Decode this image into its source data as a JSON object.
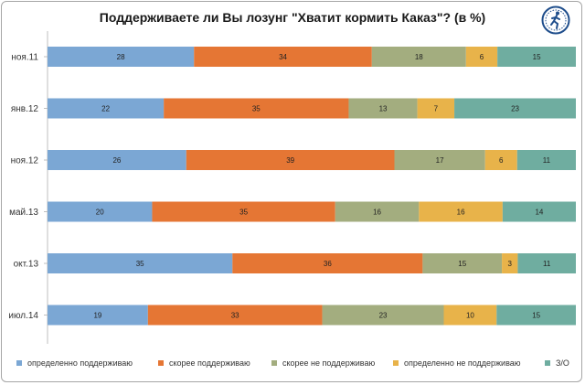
{
  "chart_data": {
    "type": "bar",
    "orientation": "horizontal",
    "stacked": true,
    "title": "Поддерживаете ли Вы лозунг \"Хватит кормить Каказ\"? (в %)",
    "categories": [
      "ноя.11",
      "янв.12",
      "ноя.12",
      "май.13",
      "окт.13",
      "июл.14"
    ],
    "series": [
      {
        "name": "определенно поддерживаю",
        "color": "#7ba7d4",
        "values": [
          28,
          22,
          26,
          20,
          35,
          19
        ]
      },
      {
        "name": "скорее поддерживаю",
        "color": "#e57634",
        "values": [
          34,
          35,
          39,
          35,
          36,
          33
        ]
      },
      {
        "name": "скорее не поддерживаю",
        "color": "#a3ad7f",
        "values": [
          18,
          13,
          17,
          16,
          15,
          23
        ]
      },
      {
        "name": "определенно не поддерживаю",
        "color": "#e8b34a",
        "values": [
          6,
          7,
          6,
          16,
          3,
          10
        ]
      },
      {
        "name": "З/О",
        "color": "#6fada0",
        "values": [
          15,
          23,
          11,
          14,
          11,
          15
        ]
      }
    ],
    "legend_position": "bottom",
    "grid": false
  },
  "logo": {
    "icon": "runner-logo-icon"
  }
}
